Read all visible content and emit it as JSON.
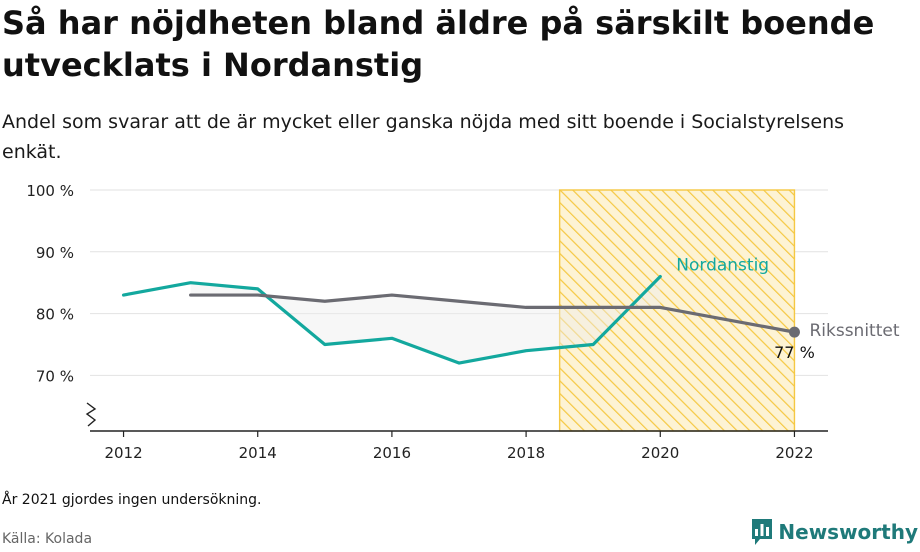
{
  "header": {
    "title": "Så har nöjdheten bland äldre på särskilt boende utvecklats i Nordanstig",
    "subtitle": "Andel som svarar att de är mycket eller ganska nöjda med sitt boende i Socialstyrelsens enkät."
  },
  "footer": {
    "note": "År 2021 gjordes ingen undersökning.",
    "source": "Källa: Kolada",
    "brand": "Newsworthy"
  },
  "colors": {
    "nordanstig": "#13a89e",
    "riket": "#6b6b72",
    "highlight": "#f5c842",
    "grid": "#e2e2e2",
    "brand": "#1f7a7a"
  },
  "chart_data": {
    "type": "line",
    "title": "",
    "xlabel": "",
    "ylabel": "",
    "x_ticks": [
      2012,
      2014,
      2016,
      2018,
      2020,
      2022
    ],
    "y_ticks": [
      70,
      80,
      90,
      100
    ],
    "y_tick_labels": [
      "70 %",
      "80 %",
      "90 %",
      "100 %"
    ],
    "xlim": [
      2011.5,
      2022.5
    ],
    "ylim": [
      61,
      100
    ],
    "y_axis_break": true,
    "grid": true,
    "highlight_range": [
      2018.5,
      2022
    ],
    "series": [
      {
        "name": "Nordanstig",
        "color": "#13a89e",
        "x": [
          2012,
          2013,
          2014,
          2015,
          2016,
          2017,
          2018,
          2019,
          2020
        ],
        "y": [
          83,
          85,
          84,
          75,
          76,
          72,
          74,
          75,
          86
        ]
      },
      {
        "name": "Rikssnittet",
        "color": "#6b6b72",
        "x": [
          2013,
          2014,
          2015,
          2016,
          2017,
          2018,
          2019,
          2020,
          2022
        ],
        "y": [
          83,
          83,
          82,
          83,
          82,
          81,
          81,
          81,
          77
        ],
        "last_value_label": "77 %"
      }
    ]
  }
}
